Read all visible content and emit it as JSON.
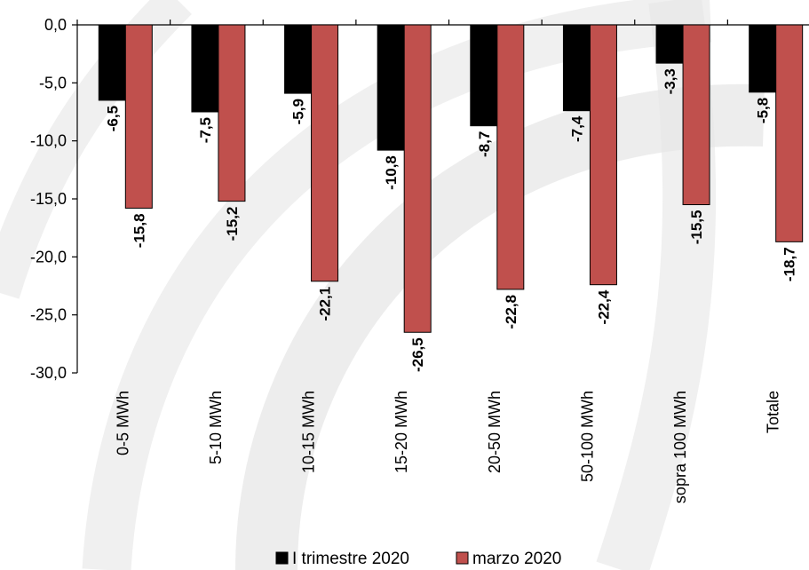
{
  "chart_data": {
    "type": "bar",
    "categories": [
      "0-5 MWh",
      "5-10 MWh",
      "10-15 MWh",
      "15-20 MWh",
      "20-50 MWh",
      "50-100 MWh",
      "sopra 100 MWh",
      "Totale"
    ],
    "series": [
      {
        "name": "I trimestre 2020",
        "values": [
          -6.5,
          -7.5,
          -5.9,
          -10.8,
          -8.7,
          -7.4,
          -3.3,
          -5.8
        ],
        "labels": [
          "-6,5",
          "-7,5",
          "-5,9",
          "-10,8",
          "-8,7",
          "-7,4",
          "-3,3",
          "-5,8"
        ]
      },
      {
        "name": "marzo 2020",
        "values": [
          -15.8,
          -15.2,
          -22.1,
          -26.5,
          -22.8,
          -22.4,
          -15.5,
          -18.7
        ],
        "labels": [
          "-15,8",
          "-15,2",
          "-22,1",
          "-26,5",
          "-22,8",
          "-22,4",
          "-15,5",
          "-18,7"
        ]
      }
    ],
    "y_ticks": [
      "0,0",
      "-5,0",
      "-10,0",
      "-15,0",
      "-20,0",
      "-25,0",
      "-30,0"
    ],
    "ylim": [
      -30,
      0
    ],
    "grid": false,
    "legend_position": "bottom",
    "colors": {
      "I trimestre 2020": "#000000",
      "marzo 2020": "#c0504d",
      "watermark": "#e6e6e6"
    }
  }
}
